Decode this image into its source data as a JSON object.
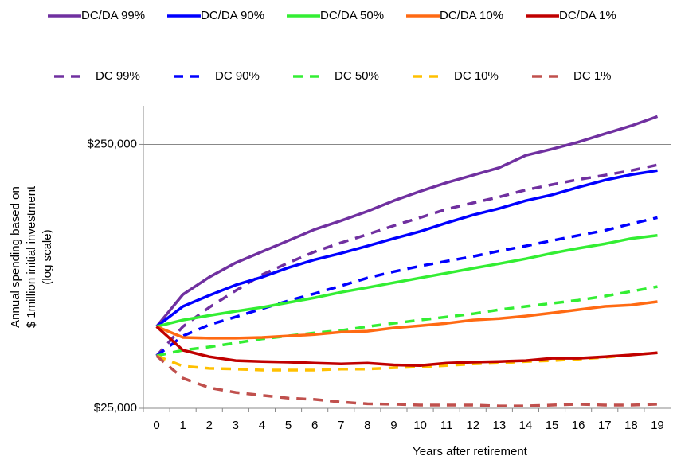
{
  "chart_data": {
    "type": "line",
    "y_label": [
      "Annual spending based on",
      "$ 1million initial investment",
      "(log scale)"
    ],
    "x_label": "Years after retirement",
    "categories": [
      "0",
      "1",
      "2",
      "3",
      "4",
      "5",
      "6",
      "7",
      "8",
      "9",
      "10",
      "11",
      "12",
      "13",
      "14",
      "15",
      "16",
      "17",
      "18",
      "19"
    ],
    "log_y": true,
    "ylim": [
      25000,
      350000
    ],
    "yticks": [
      {
        "value": 25000,
        "label": "$25,000"
      },
      {
        "value": 250000,
        "label": "$250,000"
      }
    ],
    "grid": true,
    "series": [
      {
        "name": "DC/DA 99%",
        "color": "#7030a0",
        "dashed": false,
        "values": [
          51000,
          67500,
          78500,
          89000,
          98000,
          108000,
          119000,
          128500,
          139500,
          153000,
          166000,
          179000,
          191000,
          204000,
          227000,
          240000,
          255000,
          274000,
          294000,
          319000
        ]
      },
      {
        "name": "DC/DA 90%",
        "color": "#0000ff",
        "dashed": false,
        "values": [
          51000,
          60800,
          67000,
          73300,
          78500,
          85300,
          91400,
          96700,
          103000,
          110000,
          117000,
          126000,
          135000,
          143000,
          153000,
          161000,
          172000,
          183000,
          192000,
          199000
        ]
      },
      {
        "name": "DC/DA 50%",
        "color": "#33ee33",
        "dashed": false,
        "values": [
          51000,
          54000,
          56200,
          58300,
          60300,
          62900,
          65600,
          68800,
          71700,
          74800,
          78000,
          81300,
          84800,
          88300,
          92100,
          96700,
          101000,
          105000,
          110000,
          113000
        ]
      },
      {
        "name": "DC/DA 10%",
        "color": "#ff6a13",
        "dashed": false,
        "values": [
          51000,
          46400,
          46100,
          46100,
          46400,
          47000,
          47600,
          48600,
          49000,
          50400,
          51400,
          52500,
          54000,
          54700,
          55900,
          57400,
          59100,
          60800,
          61600,
          63400
        ]
      },
      {
        "name": "DC/DA 1%",
        "color": "#c00000",
        "dashed": false,
        "values": [
          51000,
          41500,
          39200,
          37900,
          37600,
          37400,
          37100,
          36800,
          37100,
          36500,
          36300,
          37100,
          37400,
          37600,
          37900,
          38700,
          38700,
          39200,
          39800,
          40600
        ]
      },
      {
        "name": "DC 99%",
        "color": "#7030a0",
        "dashed": true,
        "values": [
          39500,
          51000,
          60300,
          69800,
          80200,
          89000,
          98000,
          106000,
          114000,
          123000,
          132000,
          142000,
          150000,
          158000,
          168000,
          176000,
          184000,
          191000,
          199000,
          209000
        ]
      },
      {
        "name": "DC 90%",
        "color": "#0000ff",
        "dashed": true,
        "values": [
          39500,
          47000,
          51800,
          55500,
          59600,
          63900,
          68000,
          72800,
          78000,
          82400,
          86500,
          90200,
          94000,
          98700,
          103000,
          108000,
          113000,
          118000,
          125000,
          132000
        ]
      },
      {
        "name": "DC 50%",
        "color": "#33ee33",
        "dashed": true,
        "values": [
          39500,
          41500,
          42700,
          44200,
          45800,
          47000,
          48300,
          49300,
          51000,
          52500,
          54000,
          55500,
          57000,
          59100,
          60800,
          62500,
          64200,
          66500,
          69300,
          72300
        ]
      },
      {
        "name": "DC 10%",
        "color": "#ffc000",
        "dashed": true,
        "values": [
          39500,
          36100,
          35400,
          35200,
          34900,
          34900,
          34900,
          35200,
          35200,
          35600,
          35900,
          36300,
          36800,
          37100,
          37600,
          37900,
          38400,
          39000,
          39800,
          40600
        ]
      },
      {
        "name": "DC 1%",
        "color": "#c0504d",
        "dashed": true,
        "values": [
          39500,
          32500,
          29900,
          28700,
          28000,
          27300,
          27000,
          26400,
          26000,
          25900,
          25700,
          25700,
          25700,
          25500,
          25500,
          25700,
          25900,
          25700,
          25700,
          25900
        ]
      }
    ]
  }
}
